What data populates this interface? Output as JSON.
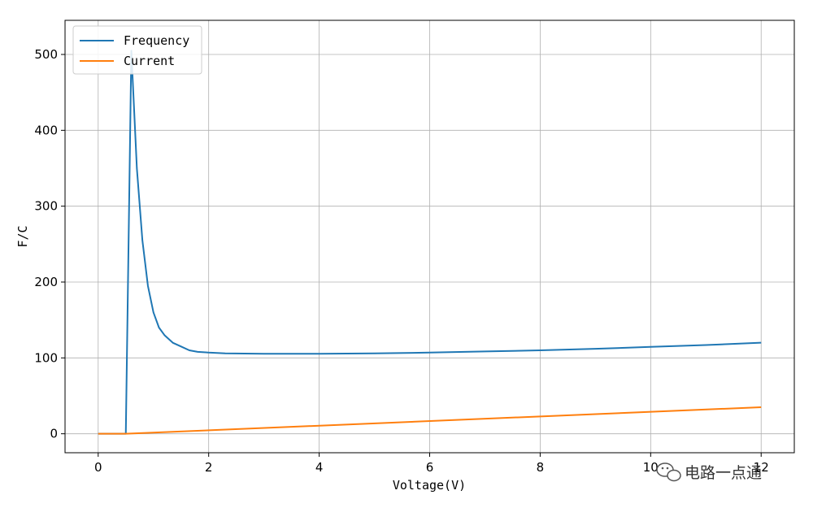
{
  "chart_data": {
    "type": "line",
    "xlabel": "Voltage(V)",
    "ylabel": "F/C",
    "xlim": [
      -0.6,
      12.6
    ],
    "ylim": [
      -25,
      545
    ],
    "xticks": [
      0,
      2,
      4,
      6,
      8,
      10,
      12
    ],
    "xtick_labels": [
      "0",
      "2",
      "4",
      "6",
      "8",
      "10",
      "12"
    ],
    "yticks": [
      0,
      100,
      200,
      300,
      400,
      500
    ],
    "ytick_labels": [
      "0",
      "100",
      "200",
      "300",
      "400",
      "500"
    ],
    "grid": true,
    "legend_position": "top-left",
    "series": [
      {
        "name": "Frequency",
        "color": "#1f77b4",
        "x": [
          0,
          0.5,
          0.6,
          0.7,
          0.8,
          0.9,
          1.0,
          1.1,
          1.2,
          1.35,
          1.5,
          1.65,
          1.8,
          2.0,
          2.3,
          3.0,
          4.0,
          5.0,
          6.0,
          7.0,
          8.0,
          9.0,
          10.0,
          11.0,
          12.0
        ],
        "y": [
          0,
          0,
          505,
          350,
          255,
          195,
          160,
          140,
          130,
          120,
          115,
          110,
          108,
          107,
          106,
          105.5,
          105.5,
          106,
          107,
          108.5,
          110,
          112,
          114.5,
          117,
          120
        ]
      },
      {
        "name": "Current",
        "color": "#ff7f0e",
        "x": [
          0,
          0.5,
          12.0
        ],
        "y": [
          0,
          0,
          35
        ]
      }
    ]
  },
  "watermark": {
    "text": "电路一点通",
    "icon": "wechat-icon"
  }
}
